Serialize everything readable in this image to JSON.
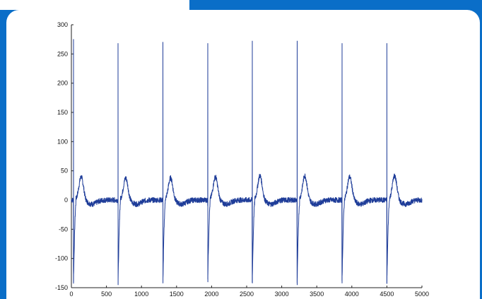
{
  "frame": {
    "border_color": "#0a6ec8",
    "tab_color": "#0a6ec8",
    "panel_color": "#ffffff"
  },
  "chart_data": {
    "type": "line",
    "title": "",
    "xlabel": "",
    "ylabel": "",
    "xlim": [
      0,
      5000
    ],
    "ylim": [
      -150,
      300
    ],
    "x_ticks": [
      "0",
      "500",
      "1000",
      "1500",
      "2000",
      "2500",
      "3000",
      "3500",
      "4000",
      "4500",
      "5000"
    ],
    "y_ticks": [
      "300",
      "250",
      "200",
      "150",
      "100",
      "50",
      "0",
      "-50",
      "-100",
      "-150"
    ],
    "grid": false,
    "line_color": "#1f3d99",
    "series": [
      {
        "beats": [
          {
            "x": 30,
            "spike_top": 275,
            "spike_bottom": -140,
            "wave_peak": 40
          },
          {
            "x": 665,
            "spike_top": 268,
            "spike_bottom": -145,
            "wave_peak": 38
          },
          {
            "x": 1305,
            "spike_top": 270,
            "spike_bottom": -142,
            "wave_peak": 38
          },
          {
            "x": 1945,
            "spike_top": 268,
            "spike_bottom": -140,
            "wave_peak": 40
          },
          {
            "x": 2580,
            "spike_top": 272,
            "spike_bottom": -142,
            "wave_peak": 42
          },
          {
            "x": 3220,
            "spike_top": 272,
            "spike_bottom": -145,
            "wave_peak": 42
          },
          {
            "x": 3860,
            "spike_top": 268,
            "spike_bottom": -142,
            "wave_peak": 40
          },
          {
            "x": 4500,
            "spike_top": 268,
            "spike_bottom": -142,
            "wave_peak": 42
          }
        ],
        "baseline": 0,
        "x_end": 5000
      }
    ]
  }
}
